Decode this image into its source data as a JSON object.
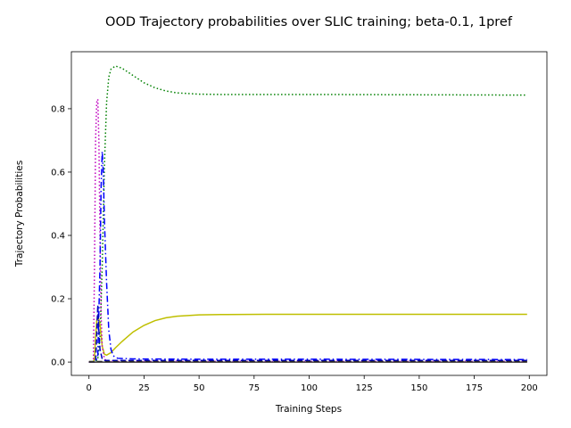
{
  "chart_data": {
    "type": "line",
    "title": "OOD Trajectory probabilities over SLIC training; beta-0.1, 1pref",
    "xlabel": "Training Steps",
    "ylabel": "Trajectory Probabilities",
    "xlim": [
      -8,
      208
    ],
    "ylim": [
      -0.042,
      0.98
    ],
    "xticks": [
      0,
      25,
      50,
      75,
      100,
      125,
      150,
      175,
      200
    ],
    "yticks": [
      0.0,
      0.2,
      0.4,
      0.6,
      0.8
    ],
    "ytick_labels": [
      "0.0",
      "0.2",
      "0.4",
      "0.6",
      "0.8"
    ],
    "grid": false,
    "legend": "none",
    "series": [
      {
        "color": "#008000",
        "dash": "dotted",
        "width": 1.5,
        "points": [
          [
            0,
            0
          ],
          [
            2,
            0
          ],
          [
            3,
            0.002
          ],
          [
            4,
            0.01
          ],
          [
            5,
            0.08
          ],
          [
            6,
            0.3
          ],
          [
            7,
            0.62
          ],
          [
            8,
            0.82
          ],
          [
            9,
            0.9
          ],
          [
            10,
            0.925
          ],
          [
            12,
            0.935
          ],
          [
            15,
            0.928
          ],
          [
            20,
            0.905
          ],
          [
            25,
            0.882
          ],
          [
            30,
            0.866
          ],
          [
            35,
            0.856
          ],
          [
            40,
            0.85
          ],
          [
            50,
            0.846
          ],
          [
            60,
            0.845
          ],
          [
            80,
            0.845
          ],
          [
            100,
            0.845
          ],
          [
            150,
            0.844
          ],
          [
            199,
            0.843
          ]
        ]
      },
      {
        "color": "#bfbf00",
        "dash": "solid",
        "width": 1.5,
        "points": [
          [
            0,
            0
          ],
          [
            2,
            0
          ],
          [
            2.5,
            0.01
          ],
          [
            3,
            0.08
          ],
          [
            3.5,
            0.13
          ],
          [
            4,
            0.148
          ],
          [
            5,
            0.12
          ],
          [
            6,
            0.05
          ],
          [
            7,
            0.025
          ],
          [
            8,
            0.022
          ],
          [
            10,
            0.03
          ],
          [
            12,
            0.045
          ],
          [
            15,
            0.065
          ],
          [
            20,
            0.095
          ],
          [
            25,
            0.116
          ],
          [
            30,
            0.131
          ],
          [
            35,
            0.14
          ],
          [
            40,
            0.145
          ],
          [
            50,
            0.149
          ],
          [
            60,
            0.15
          ],
          [
            80,
            0.151
          ],
          [
            100,
            0.151
          ],
          [
            150,
            0.151
          ],
          [
            199,
            0.151
          ]
        ]
      },
      {
        "color": "#bf00bf",
        "dash": "dotted",
        "width": 1.5,
        "points": [
          [
            0,
            0
          ],
          [
            2,
            0
          ],
          [
            2.5,
            0.3
          ],
          [
            3,
            0.7
          ],
          [
            3.5,
            0.82
          ],
          [
            4,
            0.83
          ],
          [
            4.5,
            0.7
          ],
          [
            5,
            0.4
          ],
          [
            5.5,
            0.15
          ],
          [
            6,
            0.05
          ],
          [
            7,
            0.01
          ],
          [
            8,
            0.003
          ],
          [
            10,
            0.002
          ],
          [
            50,
            0.002
          ],
          [
            199,
            0.002
          ]
        ]
      },
      {
        "color": "#0000ff",
        "dash": "dashdot",
        "width": 1.5,
        "points": [
          [
            0,
            0
          ],
          [
            3,
            0
          ],
          [
            4,
            0.02
          ],
          [
            5,
            0.3
          ],
          [
            5.5,
            0.55
          ],
          [
            6,
            0.665
          ],
          [
            6.5,
            0.6
          ],
          [
            7,
            0.45
          ],
          [
            8,
            0.25
          ],
          [
            9,
            0.1
          ],
          [
            10,
            0.04
          ],
          [
            11,
            0.02
          ],
          [
            13,
            0.012
          ],
          [
            20,
            0.01
          ],
          [
            50,
            0.009
          ],
          [
            100,
            0.009
          ],
          [
            199,
            0.008
          ]
        ]
      },
      {
        "color": "#0000bf",
        "dash": "dashed",
        "width": 1.5,
        "points": [
          [
            0,
            0
          ],
          [
            3,
            0
          ],
          [
            3.5,
            0.08
          ],
          [
            4,
            0.18
          ],
          [
            4.5,
            0.1
          ],
          [
            5,
            0.04
          ],
          [
            6,
            0.01
          ],
          [
            7,
            0.005
          ],
          [
            10,
            0.005
          ],
          [
            50,
            0.005
          ],
          [
            199,
            0.005
          ]
        ]
      },
      {
        "color": "#000000",
        "dash": "dashed",
        "width": 1.2,
        "points": [
          [
            0,
            0.002
          ],
          [
            50,
            0.002
          ],
          [
            100,
            0.002
          ],
          [
            199,
            0.002
          ]
        ]
      },
      {
        "color": "#bf0000",
        "dash": "solid",
        "width": 1.2,
        "points": [
          [
            0,
            0
          ],
          [
            50,
            0
          ],
          [
            100,
            0
          ],
          [
            199,
            0
          ]
        ]
      },
      {
        "color": "#404040",
        "dash": "solid",
        "width": 1.5,
        "points": [
          [
            0,
            0
          ],
          [
            199,
            0
          ]
        ]
      }
    ]
  }
}
